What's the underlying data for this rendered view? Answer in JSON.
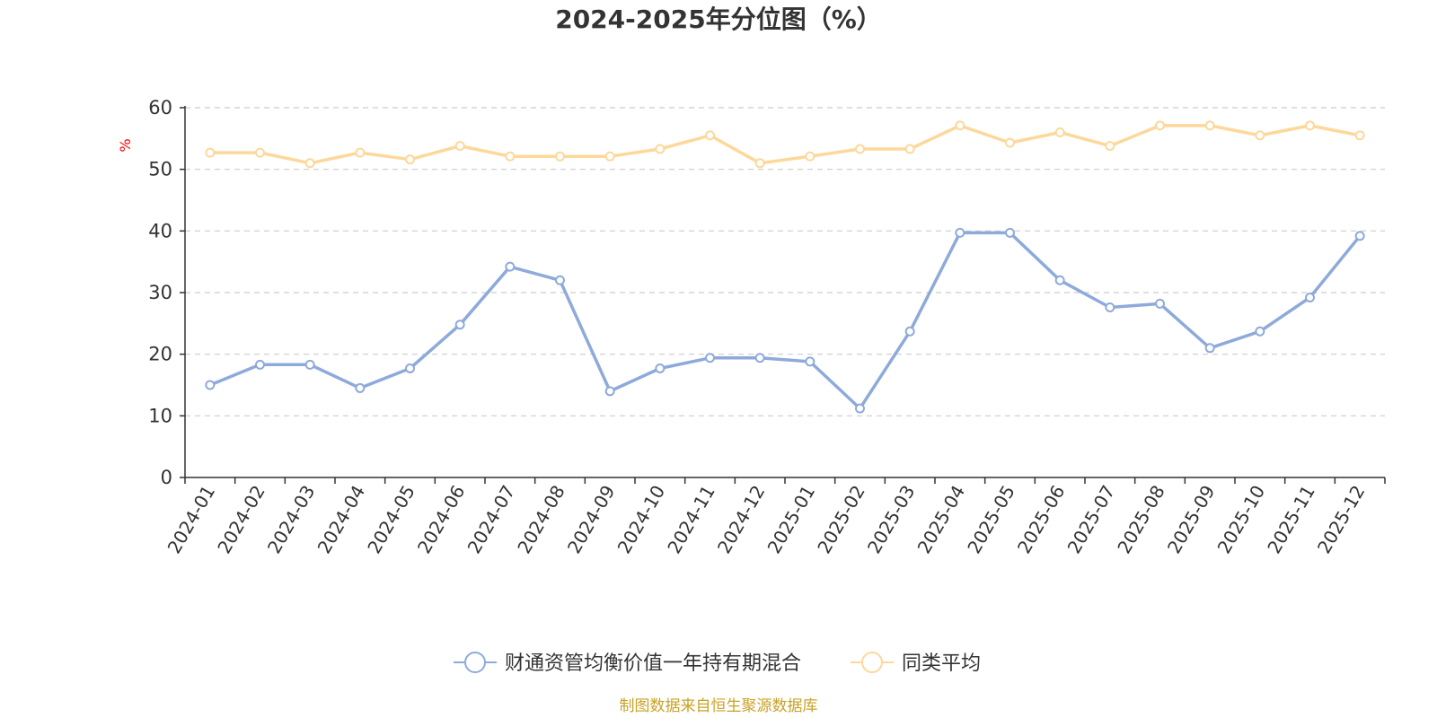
{
  "chart_data": {
    "type": "line",
    "title": "2024-2025年分位图（%）",
    "ylabel": "%",
    "xlabel": "",
    "ylim": [
      0,
      60
    ],
    "yticks": [
      0,
      10,
      20,
      30,
      40,
      50,
      60
    ],
    "grid": "horizontal dashed",
    "legend_position": "bottom-center",
    "categories": [
      "2024-01",
      "2024-02",
      "2024-03",
      "2024-04",
      "2024-05",
      "2024-06",
      "2024-07",
      "2024-08",
      "2024-09",
      "2024-10",
      "2024-11",
      "2024-12",
      "2025-01",
      "2025-02",
      "2025-03",
      "2025-04",
      "2025-05",
      "2025-06",
      "2025-07",
      "2025-08",
      "2025-09",
      "2025-10",
      "2025-11",
      "2025-12"
    ],
    "series": [
      {
        "name": "财通资管均衡价值一年持有期混合",
        "color": "#8eaadb",
        "values": [
          15,
          18.3,
          18.3,
          14.5,
          17.7,
          24.8,
          34.2,
          32,
          14,
          17.7,
          19.4,
          19.4,
          18.8,
          11.2,
          23.7,
          39.7,
          39.7,
          32,
          27.6,
          28.2,
          21,
          23.7,
          29.2,
          39.2
        ]
      },
      {
        "name": "同类平均",
        "color": "#fdd89a",
        "values": [
          52.7,
          52.7,
          51,
          52.7,
          51.6,
          53.8,
          52.1,
          52.1,
          52.1,
          53.3,
          55.5,
          51,
          52.1,
          53.3,
          53.3,
          57.1,
          54.3,
          56,
          53.8,
          57.1,
          57.1,
          55.5,
          57.1,
          55.5
        ]
      }
    ]
  },
  "source": {
    "text": "制图数据来自恒生聚源数据库",
    "color": "#c9a227"
  },
  "axis_color": "#333333",
  "ylabel_color": "#ff0000",
  "grid_color": "#cccccc",
  "text_color": "#333333"
}
